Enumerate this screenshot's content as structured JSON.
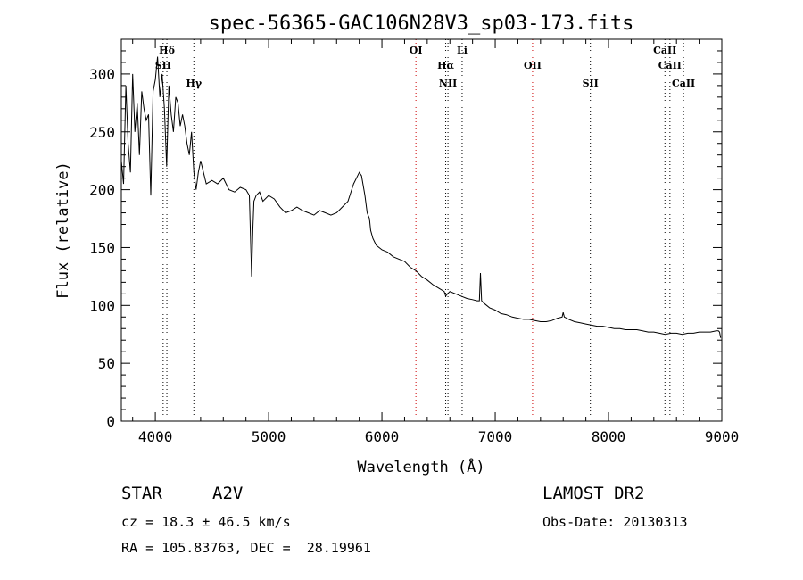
{
  "chart_data": {
    "type": "line",
    "title": "spec-56365-GAC106N28V3_sp03-173.fits",
    "xlabel": "Wavelength (Å)",
    "ylabel": "Flux (relative)",
    "xlim": [
      3700,
      9000
    ],
    "ylim": [
      0,
      330
    ],
    "x_ticks": [
      4000,
      5000,
      6000,
      7000,
      8000,
      9000
    ],
    "y_ticks": [
      0,
      50,
      100,
      150,
      200,
      250,
      300
    ],
    "grid": false,
    "series": [
      {
        "color": "#000000",
        "x": [
          3700,
          3720,
          3740,
          3760,
          3780,
          3800,
          3820,
          3840,
          3860,
          3880,
          3900,
          3920,
          3940,
          3960,
          3980,
          4000,
          4020,
          4040,
          4060,
          4080,
          4100,
          4120,
          4140,
          4160,
          4180,
          4200,
          4220,
          4240,
          4260,
          4280,
          4300,
          4320,
          4340,
          4360,
          4380,
          4400,
          4450,
          4500,
          4550,
          4600,
          4650,
          4700,
          4750,
          4800,
          4830,
          4850,
          4861,
          4870,
          4890,
          4920,
          4950,
          5000,
          5050,
          5100,
          5150,
          5200,
          5250,
          5300,
          5350,
          5400,
          5450,
          5500,
          5550,
          5600,
          5650,
          5700,
          5750,
          5800,
          5820,
          5850,
          5870,
          5890,
          5900,
          5920,
          5950,
          6000,
          6050,
          6100,
          6150,
          6200,
          6250,
          6300,
          6350,
          6400,
          6450,
          6500,
          6550,
          6563,
          6580,
          6600,
          6650,
          6700,
          6750,
          6800,
          6840,
          6860,
          6870,
          6880,
          6900,
          6950,
          7000,
          7050,
          7100,
          7150,
          7200,
          7250,
          7300,
          7350,
          7400,
          7450,
          7500,
          7550,
          7590,
          7600,
          7610,
          7650,
          7700,
          7750,
          7800,
          7850,
          7900,
          7950,
          8000,
          8050,
          8100,
          8150,
          8200,
          8250,
          8300,
          8350,
          8400,
          8450,
          8500,
          8550,
          8600,
          8650,
          8700,
          8750,
          8800,
          8850,
          8900,
          8950,
          8970,
          8980,
          8990
        ],
        "y": [
          225,
          205,
          290,
          240,
          215,
          300,
          250,
          275,
          230,
          285,
          270,
          260,
          265,
          195,
          285,
          295,
          315,
          280,
          300,
          270,
          220,
          290,
          265,
          250,
          280,
          275,
          255,
          265,
          255,
          240,
          230,
          250,
          215,
          200,
          215,
          225,
          205,
          208,
          205,
          210,
          200,
          198,
          202,
          200,
          195,
          125,
          165,
          190,
          195,
          198,
          190,
          195,
          192,
          185,
          180,
          182,
          185,
          182,
          180,
          178,
          182,
          180,
          178,
          180,
          185,
          190,
          205,
          215,
          212,
          195,
          180,
          175,
          165,
          158,
          152,
          148,
          146,
          142,
          140,
          138,
          133,
          130,
          125,
          122,
          118,
          115,
          112,
          108,
          110,
          112,
          110,
          108,
          106,
          105,
          104,
          104,
          128,
          104,
          102,
          98,
          96,
          93,
          92,
          90,
          89,
          88,
          88,
          87,
          86,
          86,
          87,
          89,
          90,
          94,
          90,
          88,
          86,
          85,
          84,
          83,
          82,
          82,
          81,
          80,
          80,
          79,
          79,
          79,
          78,
          77,
          77,
          76,
          75,
          76,
          76,
          75,
          76,
          76,
          77,
          77,
          77,
          78,
          78,
          77,
          72
        ]
      }
    ],
    "line_markers": [
      {
        "label": "Hδ",
        "x": 4102,
        "color": "#000000"
      },
      {
        "label": "SII",
        "x": 4069,
        "color": "#000000"
      },
      {
        "label": "Hγ",
        "x": 4340,
        "color": "#000000"
      },
      {
        "label": "OI",
        "x": 6300,
        "color": "#cc0000"
      },
      {
        "label": "Hα",
        "x": 6563,
        "color": "#000000"
      },
      {
        "label": "NII",
        "x": 6583,
        "color": "#000000"
      },
      {
        "label": "Li",
        "x": 6708,
        "color": "#000000"
      },
      {
        "label": "OII",
        "x": 7330,
        "color": "#cc0000"
      },
      {
        "label": "SII",
        "x": 7840,
        "color": "#000000"
      },
      {
        "label": "CaII",
        "x": 8498,
        "color": "#000000"
      },
      {
        "label": "CaII",
        "x": 8542,
        "color": "#000000"
      },
      {
        "label": "CaII",
        "x": 8662,
        "color": "#000000"
      }
    ]
  },
  "info": {
    "object_class": "STAR",
    "subclass": "A2V",
    "survey": "LAMOST DR2",
    "redshift": "cz = 18.3 ± 46.5 km/s",
    "obs_date": "Obs-Date: 20130313",
    "coords": "RA = 105.83763, DEC =  28.19961"
  }
}
